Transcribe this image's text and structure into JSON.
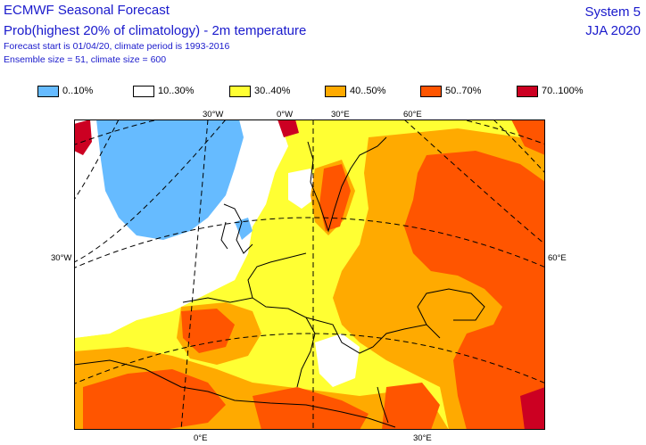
{
  "title": "ECMWF Seasonal Forecast",
  "subtitle": "Prob(highest 20% of climatology) - 2m temperature",
  "info_line1": "Forecast start is 01/04/20, climate period is 1993-2016",
  "info_line2": "Ensemble size = 51, climate size = 600",
  "system": "System 5",
  "season": "JJA 2020",
  "legend": [
    {
      "label": "0..10%",
      "color": "#66bbff"
    },
    {
      "label": "10..30%",
      "color": "#ffffff"
    },
    {
      "label": "30..40%",
      "color": "#ffff33"
    },
    {
      "label": "40..50%",
      "color": "#ffaa00"
    },
    {
      "label": "50..70%",
      "color": "#ff5500"
    },
    {
      "label": "70..100%",
      "color": "#cc0022"
    }
  ],
  "axis_labels": {
    "top_30w": "30°W",
    "top_0e": "0°W",
    "top_30e": "30°E",
    "top_60e": "60°E",
    "left_30w": "30°W",
    "right_60e": "60°E",
    "bottom_0e": "0°E",
    "bottom_30e": "30°E"
  }
}
